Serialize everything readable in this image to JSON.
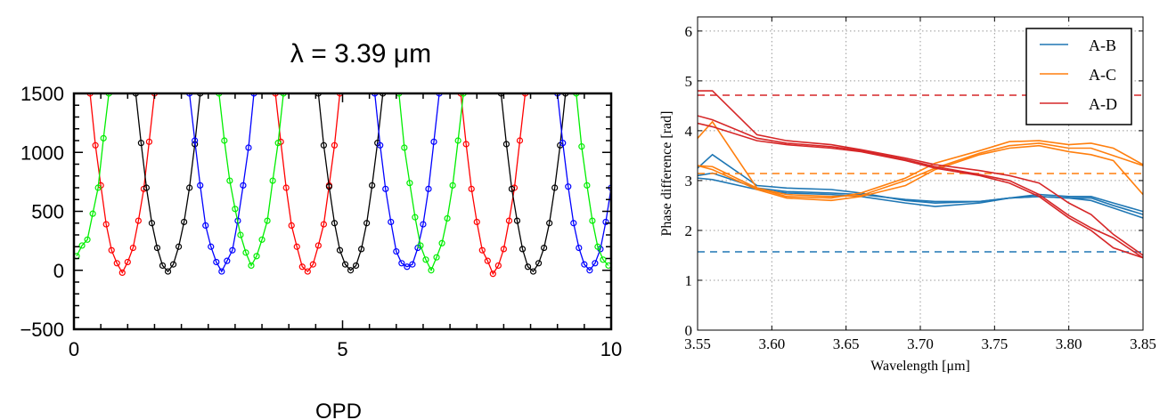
{
  "chart_data": [
    {
      "type": "line",
      "title": "λ = 3.39 μm",
      "xlabel": "OPD",
      "ylabel": "",
      "xlim": [
        0,
        10
      ],
      "ylim": [
        -500,
        1500
      ],
      "xticks": [
        "0",
        "5",
        "10"
      ],
      "yticks": [
        "1500",
        "1000",
        "500",
        "0",
        "−500"
      ],
      "grid": false,
      "markers": "open-circle",
      "series": [
        {
          "color": "#ff0000",
          "segments": [
            [
              [
                0.3,
                1500
              ],
              [
                0.4,
                1060
              ],
              [
                0.5,
                720
              ],
              [
                0.6,
                390
              ],
              [
                0.7,
                170
              ],
              [
                0.8,
                60
              ],
              [
                0.9,
                -20
              ],
              [
                1.0,
                70
              ],
              [
                1.1,
                190
              ],
              [
                1.2,
                420
              ],
              [
                1.3,
                690
              ],
              [
                1.4,
                1090
              ],
              [
                1.5,
                1500
              ]
            ],
            [
              [
                3.75,
                1500
              ],
              [
                3.85,
                1090
              ],
              [
                3.95,
                700
              ],
              [
                4.05,
                380
              ],
              [
                4.15,
                200
              ],
              [
                4.25,
                30
              ],
              [
                4.35,
                -10
              ],
              [
                4.45,
                50
              ],
              [
                4.55,
                210
              ],
              [
                4.65,
                390
              ],
              [
                4.75,
                720
              ],
              [
                4.85,
                1060
              ],
              [
                4.95,
                1500
              ]
            ],
            [
              [
                7.2,
                1500
              ],
              [
                7.3,
                1070
              ],
              [
                7.4,
                690
              ],
              [
                7.5,
                410
              ],
              [
                7.6,
                170
              ],
              [
                7.7,
                80
              ],
              [
                7.8,
                -30
              ],
              [
                7.9,
                40
              ],
              [
                8.0,
                180
              ],
              [
                8.1,
                420
              ],
              [
                8.2,
                700
              ],
              [
                8.3,
                1100
              ],
              [
                8.4,
                1500
              ]
            ]
          ]
        },
        {
          "color": "#000000",
          "segments": [
            [
              [
                1.15,
                1500
              ],
              [
                1.25,
                1080
              ],
              [
                1.35,
                700
              ],
              [
                1.45,
                400
              ],
              [
                1.55,
                190
              ],
              [
                1.65,
                40
              ],
              [
                1.75,
                -10
              ],
              [
                1.85,
                50
              ],
              [
                1.95,
                200
              ],
              [
                2.05,
                410
              ],
              [
                2.15,
                700
              ],
              [
                2.25,
                1070
              ],
              [
                2.35,
                1500
              ]
            ],
            [
              [
                4.55,
                1500
              ],
              [
                4.65,
                1060
              ],
              [
                4.75,
                710
              ],
              [
                4.85,
                400
              ],
              [
                4.95,
                170
              ],
              [
                5.05,
                50
              ],
              [
                5.15,
                0
              ],
              [
                5.25,
                40
              ],
              [
                5.35,
                180
              ],
              [
                5.45,
                400
              ],
              [
                5.55,
                720
              ],
              [
                5.65,
                1080
              ],
              [
                5.75,
                1500
              ]
            ],
            [
              [
                7.95,
                1500
              ],
              [
                8.05,
                1070
              ],
              [
                8.15,
                690
              ],
              [
                8.25,
                420
              ],
              [
                8.35,
                180
              ],
              [
                8.45,
                30
              ],
              [
                8.55,
                -10
              ],
              [
                8.65,
                60
              ],
              [
                8.75,
                190
              ],
              [
                8.85,
                400
              ],
              [
                8.95,
                700
              ],
              [
                9.05,
                1060
              ],
              [
                9.15,
                1500
              ]
            ]
          ]
        },
        {
          "color": "#0000ff",
          "segments": [
            [
              [
                2.15,
                1500
              ],
              [
                2.25,
                1100
              ],
              [
                2.35,
                720
              ],
              [
                2.45,
                380
              ],
              [
                2.55,
                200
              ],
              [
                2.65,
                70
              ],
              [
                2.75,
                -10
              ],
              [
                2.85,
                80
              ],
              [
                2.95,
                170
              ],
              [
                3.05,
                420
              ],
              [
                3.15,
                720
              ],
              [
                3.25,
                1040
              ],
              [
                3.35,
                1500
              ]
            ],
            [
              [
                5.6,
                1500
              ],
              [
                5.7,
                1060
              ],
              [
                5.8,
                690
              ],
              [
                5.9,
                410
              ],
              [
                6.0,
                160
              ],
              [
                6.1,
                60
              ],
              [
                6.2,
                30
              ],
              [
                6.3,
                50
              ],
              [
                6.4,
                190
              ],
              [
                6.5,
                390
              ],
              [
                6.6,
                690
              ],
              [
                6.7,
                1090
              ],
              [
                6.8,
                1500
              ]
            ],
            [
              [
                9.0,
                1500
              ],
              [
                9.1,
                1080
              ],
              [
                9.2,
                710
              ],
              [
                9.3,
                400
              ],
              [
                9.4,
                190
              ],
              [
                9.5,
                50
              ],
              [
                9.6,
                0
              ],
              [
                9.7,
                60
              ],
              [
                9.8,
                180
              ],
              [
                9.9,
                410
              ],
              [
                10.0,
                700
              ]
            ]
          ]
        },
        {
          "color": "#00ee00",
          "segments": [
            [
              [
                0.05,
                120
              ],
              [
                0.15,
                210
              ],
              [
                0.25,
                260
              ],
              [
                0.35,
                480
              ],
              [
                0.45,
                700
              ],
              [
                0.55,
                1120
              ],
              [
                0.65,
                1500
              ]
            ],
            [
              [
                2.7,
                1500
              ],
              [
                2.8,
                1100
              ],
              [
                2.9,
                760
              ],
              [
                3.0,
                520
              ],
              [
                3.1,
                300
              ],
              [
                3.2,
                150
              ],
              [
                3.3,
                40
              ],
              [
                3.4,
                120
              ],
              [
                3.5,
                260
              ],
              [
                3.6,
                420
              ],
              [
                3.7,
                760
              ],
              [
                3.8,
                1080
              ],
              [
                3.9,
                1500
              ]
            ],
            [
              [
                6.05,
                1500
              ],
              [
                6.15,
                1040
              ],
              [
                6.25,
                740
              ],
              [
                6.35,
                450
              ],
              [
                6.45,
                210
              ],
              [
                6.55,
                90
              ],
              [
                6.65,
                0
              ],
              [
                6.75,
                110
              ],
              [
                6.85,
                230
              ],
              [
                6.95,
                440
              ],
              [
                7.05,
                720
              ],
              [
                7.15,
                1100
              ],
              [
                7.25,
                1500
              ]
            ],
            [
              [
                9.35,
                1500
              ],
              [
                9.45,
                1050
              ],
              [
                9.55,
                720
              ],
              [
                9.65,
                420
              ],
              [
                9.75,
                200
              ],
              [
                9.85,
                90
              ],
              [
                9.95,
                40
              ]
            ]
          ]
        }
      ]
    },
    {
      "type": "line",
      "title": "",
      "xlabel": "Wavelength [μm]",
      "ylabel": "Phase difference [rad]",
      "xlim": [
        3.55,
        3.85
      ],
      "ylim": [
        0,
        6.283
      ],
      "xticks": [
        "3.55",
        "3.60",
        "3.65",
        "3.70",
        "3.75",
        "3.80",
        "3.85"
      ],
      "yticks": [
        "0",
        "1",
        "2",
        "3",
        "4",
        "5",
        "6"
      ],
      "grid": true,
      "legend": "top-right",
      "x": [
        3.55,
        3.56,
        3.59,
        3.61,
        3.64,
        3.66,
        3.69,
        3.71,
        3.74,
        3.76,
        3.78,
        3.8,
        3.815,
        3.83,
        3.85
      ],
      "series": [
        {
          "name": "A-B",
          "color": "#1f77b4",
          "reference": 1.571,
          "lines": [
            [
              3.25,
              3.52,
              2.9,
              2.85,
              2.82,
              2.75,
              2.6,
              2.55,
              2.58,
              2.65,
              2.72,
              2.68,
              2.68,
              2.55,
              2.38
            ],
            [
              3.1,
              3.15,
              2.85,
              2.78,
              2.75,
              2.72,
              2.62,
              2.58,
              2.58,
              2.65,
              2.68,
              2.65,
              2.65,
              2.5,
              2.32
            ],
            [
              3.05,
              3.02,
              2.82,
              2.75,
              2.72,
              2.68,
              2.55,
              2.48,
              2.55,
              2.65,
              2.68,
              2.65,
              2.6,
              2.45,
              2.25
            ]
          ]
        },
        {
          "name": "A-C",
          "color": "#ff7f0e",
          "reference": 3.142,
          "lines": [
            [
              3.85,
              4.18,
              2.85,
              2.68,
              2.65,
              2.75,
              3.05,
              3.35,
              3.6,
              3.78,
              3.8,
              3.72,
              3.75,
              3.65,
              3.32
            ],
            [
              3.3,
              3.28,
              2.85,
              2.72,
              2.68,
              2.7,
              3.0,
              3.25,
              3.55,
              3.7,
              3.75,
              3.65,
              3.65,
              3.5,
              3.3
            ],
            [
              3.3,
              3.22,
              2.82,
              2.65,
              2.6,
              2.68,
              2.9,
              3.22,
              3.52,
              3.65,
              3.7,
              3.58,
              3.52,
              3.4,
              2.72
            ]
          ]
        },
        {
          "name": "A-D",
          "color": "#d62728",
          "reference": 4.712,
          "lines": [
            [
              4.8,
              4.8,
              3.92,
              3.8,
              3.72,
              3.62,
              3.45,
              3.32,
              3.2,
              3.1,
              2.95,
              2.55,
              2.32,
              1.92,
              1.5
            ],
            [
              4.3,
              4.22,
              3.85,
              3.75,
              3.68,
              3.6,
              3.42,
              3.28,
              3.12,
              3.0,
              2.72,
              2.3,
              2.05,
              1.85,
              1.45
            ],
            [
              4.15,
              4.08,
              3.8,
              3.72,
              3.65,
              3.58,
              3.4,
              3.25,
              3.1,
              2.95,
              2.68,
              2.25,
              2.0,
              1.65,
              1.45
            ]
          ]
        }
      ]
    }
  ]
}
